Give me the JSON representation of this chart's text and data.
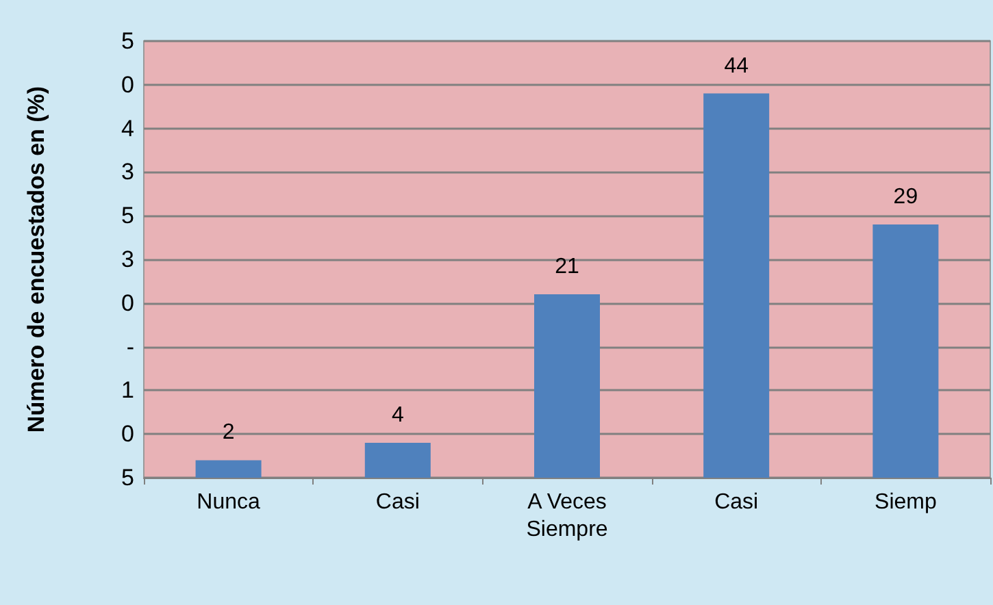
{
  "chart_data": {
    "type": "bar",
    "ylabel": "Número de encuestados en (%)",
    "categories": [
      "Nunca",
      "Casi",
      "A Veces\nSiempre",
      "Casi",
      "Siemp"
    ],
    "values": [
      2,
      4,
      21,
      44,
      29
    ],
    "color": "#4f81bd",
    "data_labels": true,
    "grid": "y",
    "ylim": [
      0,
      50
    ],
    "yticks": [
      {
        "value": 0,
        "label": null
      },
      {
        "value": 5,
        "label": null
      },
      {
        "value": 10,
        "label": null
      },
      {
        "value": 15,
        "label": null
      },
      {
        "value": 20,
        "label": null
      },
      {
        "value": 25,
        "label": null
      },
      {
        "value": 30,
        "label": null
      },
      {
        "value": 35,
        "label": null
      },
      {
        "value": 40,
        "label": null
      },
      {
        "value": 45,
        "label": null
      },
      {
        "value": 50,
        "label": null
      }
    ],
    "annotations": [
      "5",
      "0",
      "4",
      "3",
      "5",
      "3",
      "0",
      "-",
      "1",
      "0",
      "5"
    ]
  }
}
